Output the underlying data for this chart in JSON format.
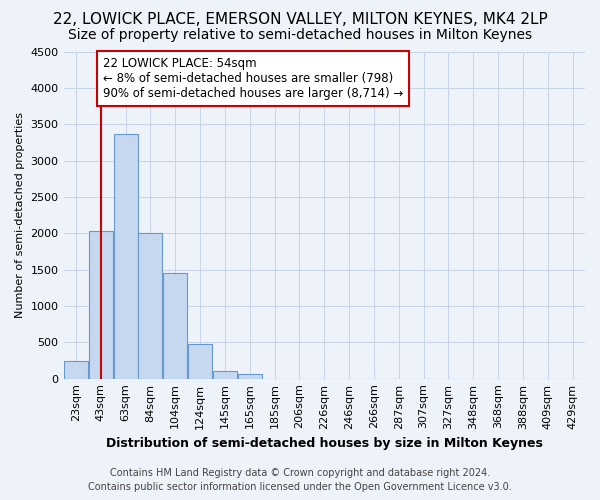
{
  "title_line1": "22, LOWICK PLACE, EMERSON VALLEY, MILTON KEYNES, MK4 2LP",
  "title_line2": "Size of property relative to semi-detached houses in Milton Keynes",
  "xlabel": "Distribution of semi-detached houses by size in Milton Keynes",
  "ylabel": "Number of semi-detached properties",
  "footer_line1": "Contains HM Land Registry data © Crown copyright and database right 2024.",
  "footer_line2": "Contains public sector information licensed under the Open Government Licence v3.0.",
  "bar_labels": [
    "23sqm",
    "43sqm",
    "63sqm",
    "84sqm",
    "104sqm",
    "124sqm",
    "145sqm",
    "165sqm",
    "185sqm",
    "206sqm",
    "226sqm",
    "246sqm",
    "266sqm",
    "287sqm",
    "307sqm",
    "327sqm",
    "348sqm",
    "368sqm",
    "388sqm",
    "409sqm",
    "429sqm"
  ],
  "bar_values": [
    250,
    2030,
    3370,
    2000,
    1460,
    480,
    100,
    60,
    0,
    0,
    0,
    0,
    0,
    0,
    0,
    0,
    0,
    0,
    0,
    0,
    0
  ],
  "bar_color": "#c5d8f0",
  "bar_edge_color": "#6699cc",
  "grid_color": "#c8d4e8",
  "vline_x": 1,
  "vline_color": "#cc0000",
  "annotation_text": "22 LOWICK PLACE: 54sqm\n← 8% of semi-detached houses are smaller (798)\n90% of semi-detached houses are larger (8,714) →",
  "annotation_box_color": "#ffffff",
  "annotation_box_edge": "#cc0000",
  "ylim": [
    0,
    4500
  ],
  "yticks": [
    0,
    500,
    1000,
    1500,
    2000,
    2500,
    3000,
    3500,
    4000,
    4500
  ],
  "background_color": "#eef2f9",
  "plot_background": "#eef2f9",
  "title_fontsize": 11,
  "subtitle_fontsize": 10,
  "ylabel_fontsize": 8,
  "xlabel_fontsize": 9,
  "tick_fontsize": 8,
  "footer_fontsize": 7
}
